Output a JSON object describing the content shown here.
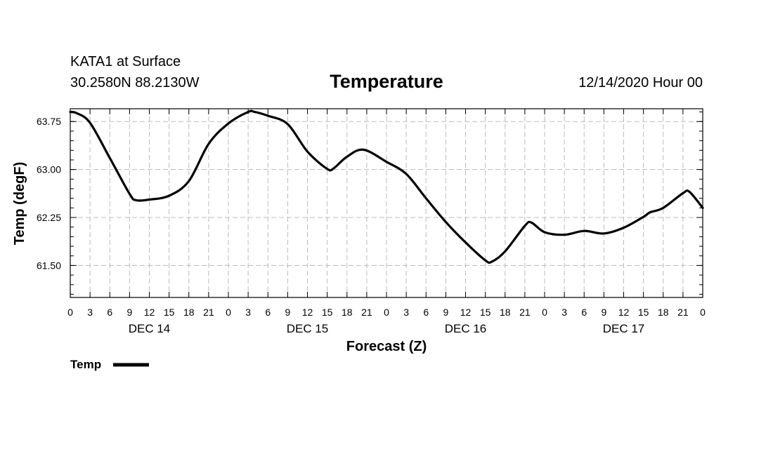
{
  "chart_data": {
    "type": "line",
    "title": "Temperature",
    "station": "KATA1 at Surface",
    "location": "30.2580N 88.2130W",
    "valid_time": "12/14/2020 Hour 00",
    "xlabel": "Forecast (Z)",
    "ylabel": "Temp (degF)",
    "ylim": [
      61.0,
      63.95
    ],
    "xlim": [
      0,
      96
    ],
    "y_ticks": [
      {
        "value": 61.5,
        "label": "61.50"
      },
      {
        "value": 62.25,
        "label": "62.25"
      },
      {
        "value": 63.0,
        "label": "63.00"
      },
      {
        "value": 63.75,
        "label": "63.75"
      }
    ],
    "x_ticks": [
      {
        "hour": 0,
        "label": "0"
      },
      {
        "hour": 3,
        "label": "3"
      },
      {
        "hour": 6,
        "label": "6"
      },
      {
        "hour": 9,
        "label": "9"
      },
      {
        "hour": 12,
        "label": "12"
      },
      {
        "hour": 15,
        "label": "15"
      },
      {
        "hour": 18,
        "label": "18"
      },
      {
        "hour": 21,
        "label": "21"
      },
      {
        "hour": 24,
        "label": "0"
      },
      {
        "hour": 27,
        "label": "3"
      },
      {
        "hour": 30,
        "label": "6"
      },
      {
        "hour": 33,
        "label": "9"
      },
      {
        "hour": 36,
        "label": "12"
      },
      {
        "hour": 39,
        "label": "15"
      },
      {
        "hour": 42,
        "label": "18"
      },
      {
        "hour": 45,
        "label": "21"
      },
      {
        "hour": 48,
        "label": "0"
      },
      {
        "hour": 51,
        "label": "3"
      },
      {
        "hour": 54,
        "label": "6"
      },
      {
        "hour": 57,
        "label": "9"
      },
      {
        "hour": 60,
        "label": "12"
      },
      {
        "hour": 63,
        "label": "15"
      },
      {
        "hour": 66,
        "label": "18"
      },
      {
        "hour": 69,
        "label": "21"
      },
      {
        "hour": 72,
        "label": "0"
      },
      {
        "hour": 75,
        "label": "3"
      },
      {
        "hour": 78,
        "label": "6"
      },
      {
        "hour": 81,
        "label": "9"
      },
      {
        "hour": 84,
        "label": "12"
      },
      {
        "hour": 87,
        "label": "15"
      },
      {
        "hour": 90,
        "label": "18"
      },
      {
        "hour": 93,
        "label": "21"
      },
      {
        "hour": 96,
        "label": "0"
      }
    ],
    "day_labels": [
      {
        "hour": 12,
        "label": "DEC 14"
      },
      {
        "hour": 36,
        "label": "DEC 15"
      },
      {
        "hour": 60,
        "label": "DEC 16"
      },
      {
        "hour": 84,
        "label": "DEC 17"
      }
    ],
    "grid": true,
    "legend_position": "bottom-left",
    "series": [
      {
        "name": "Temp",
        "color": "#000000",
        "x": [
          0,
          1,
          3,
          6,
          9,
          10,
          12,
          15,
          18,
          21,
          24,
          27,
          28,
          30,
          33,
          36,
          39,
          40,
          42,
          44.5,
          48,
          51,
          54,
          57,
          60,
          63,
          64,
          66,
          69,
          70,
          72,
          75,
          78,
          81,
          84,
          87,
          88,
          90,
          93,
          94,
          96
        ],
        "values": [
          63.9,
          63.88,
          63.73,
          63.18,
          62.62,
          62.52,
          62.53,
          62.59,
          62.82,
          63.4,
          63.72,
          63.9,
          63.9,
          63.84,
          63.71,
          63.28,
          63.01,
          63.02,
          63.2,
          63.31,
          63.12,
          62.93,
          62.55,
          62.18,
          61.86,
          61.58,
          61.56,
          61.72,
          62.12,
          62.17,
          62.02,
          61.98,
          62.04,
          62.0,
          62.09,
          62.26,
          62.33,
          62.4,
          62.63,
          62.65,
          62.4
        ]
      }
    ]
  }
}
